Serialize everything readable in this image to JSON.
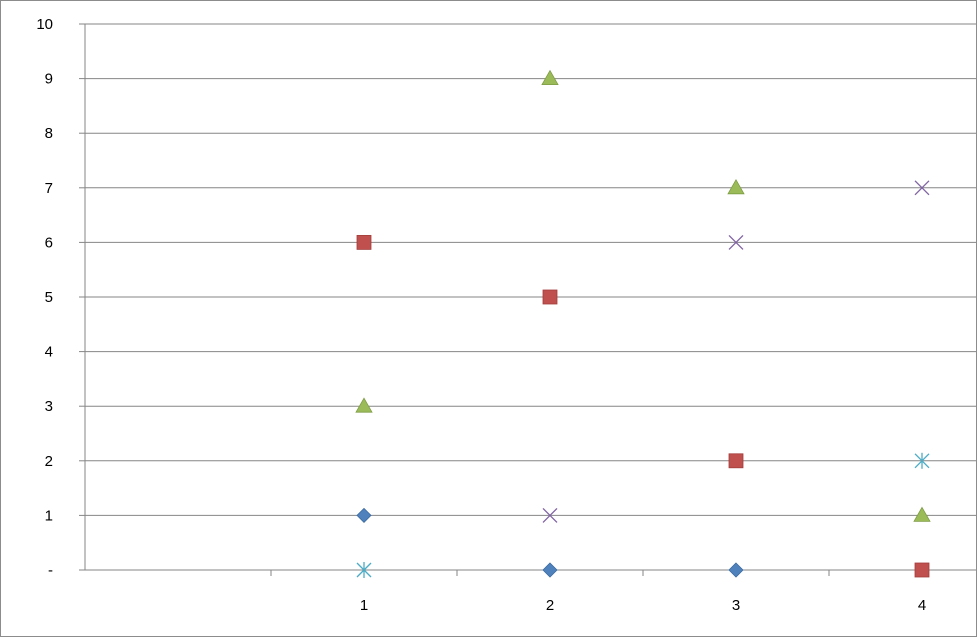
{
  "chart_data": {
    "type": "scatter",
    "title": "",
    "xlabel": "",
    "ylabel": "",
    "categories": [
      "",
      "1",
      "2",
      "3",
      "4"
    ],
    "ylim": [
      0,
      10
    ],
    "y_ticks": [
      "-",
      "1",
      "2",
      "3",
      "4",
      "5",
      "6",
      "7",
      "8",
      "9",
      "10"
    ],
    "grid": true,
    "legend": "none",
    "series": [
      {
        "marker": "diamond",
        "color": "#4f81bd",
        "values": [
          1,
          0,
          0,
          null
        ]
      },
      {
        "marker": "square",
        "color": "#c0504d",
        "values": [
          6,
          5,
          2,
          0
        ]
      },
      {
        "marker": "triangle",
        "color": "#9bbb59",
        "values": [
          3,
          9,
          7,
          1
        ]
      },
      {
        "marker": "x",
        "color": "#8064a2",
        "values": [
          null,
          1,
          6,
          7
        ]
      },
      {
        "marker": "asterisk",
        "color": "#4bacc6",
        "values": [
          0,
          null,
          null,
          2
        ]
      }
    ]
  }
}
